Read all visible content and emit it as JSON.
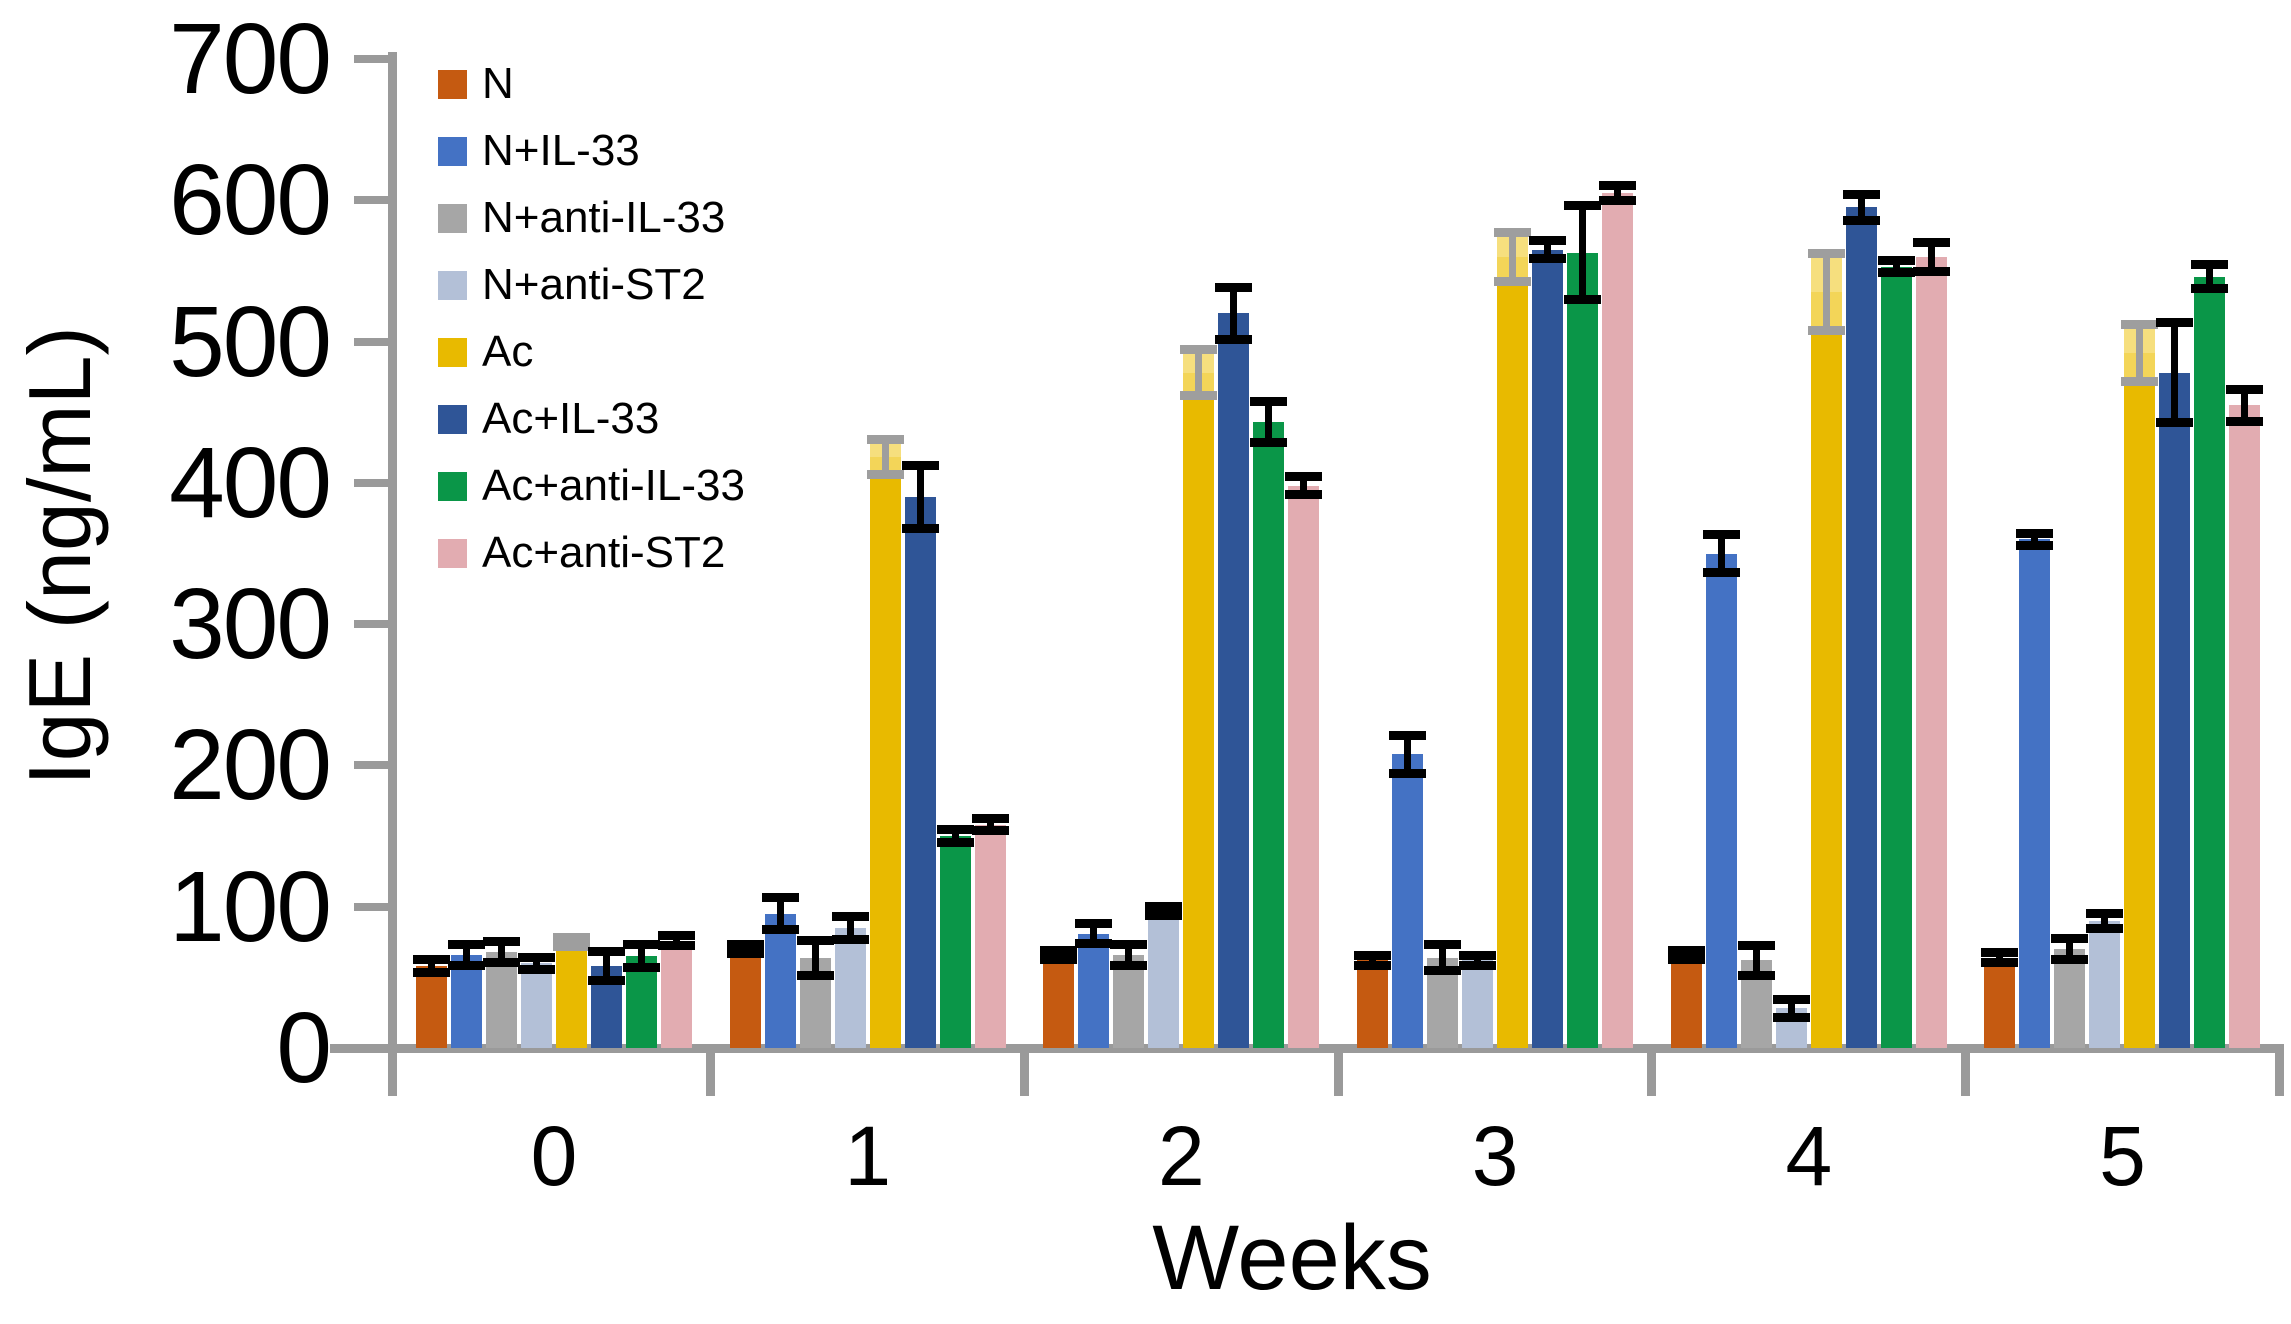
{
  "chart_data": {
    "type": "bar",
    "title": "",
    "ylabel": "IgE (ng/mL)",
    "xlabel": "Weeks",
    "ylim": [
      0,
      700
    ],
    "yticks": [
      0,
      100,
      200,
      300,
      400,
      500,
      600,
      700
    ],
    "categories": [
      "0",
      "1",
      "2",
      "3",
      "4",
      "5"
    ],
    "grid": false,
    "legend_position": "upper-left-inside",
    "error_bars": true,
    "axis_color": "#9A9A9A",
    "series": [
      {
        "name": "N",
        "color": "#C55A11",
        "error_color": "#000000",
        "values": [
          58,
          70,
          66,
          62,
          66,
          64
        ],
        "errors": [
          4,
          3,
          3,
          3,
          3,
          3
        ]
      },
      {
        "name": "N+IL-33",
        "color": "#4472C4",
        "error_color": "#000000",
        "values": [
          66,
          95,
          81,
          208,
          350,
          360
        ],
        "errors": [
          7,
          11,
          7,
          13,
          13,
          4
        ]
      },
      {
        "name": "N+anti-IL-33",
        "color": "#A6A6A6",
        "error_color": "#000000",
        "values": [
          68,
          64,
          66,
          64,
          62,
          70
        ],
        "errors": [
          7,
          12,
          7,
          9,
          10,
          7
        ]
      },
      {
        "name": "N+anti-ST2",
        "color": "#B3C0D7",
        "error_color": "#000000",
        "values": [
          60,
          85,
          97,
          62,
          28,
          90
        ],
        "errors": [
          4,
          8,
          3,
          3,
          6,
          5
        ]
      },
      {
        "name": "Ac",
        "color": "#E8BA00",
        "error_color": "#9E9E9E",
        "pale_error_fill": "#F4D967",
        "values": [
          75,
          418,
          478,
          560,
          535,
          492
        ],
        "errors": [
          3,
          12,
          16,
          17,
          27,
          20
        ]
      },
      {
        "name": "Ac+IL-33",
        "color": "#2F5597",
        "error_color": "#000000",
        "values": [
          58,
          390,
          520,
          565,
          595,
          478
        ],
        "errors": [
          10,
          22,
          18,
          6,
          9,
          35
        ]
      },
      {
        "name": "Ac+anti-IL-33",
        "color": "#0A9648",
        "error_color": "#000000",
        "values": [
          65,
          150,
          443,
          563,
          553,
          546
        ],
        "errors": [
          8,
          4,
          14,
          33,
          4,
          8
        ]
      },
      {
        "name": "Ac+anti-ST2",
        "color": "#E2ACB1",
        "error_color": "#000000",
        "values": [
          76,
          158,
          398,
          605,
          560,
          455
        ],
        "errors": [
          3,
          4,
          6,
          5,
          10,
          11
        ]
      }
    ]
  }
}
